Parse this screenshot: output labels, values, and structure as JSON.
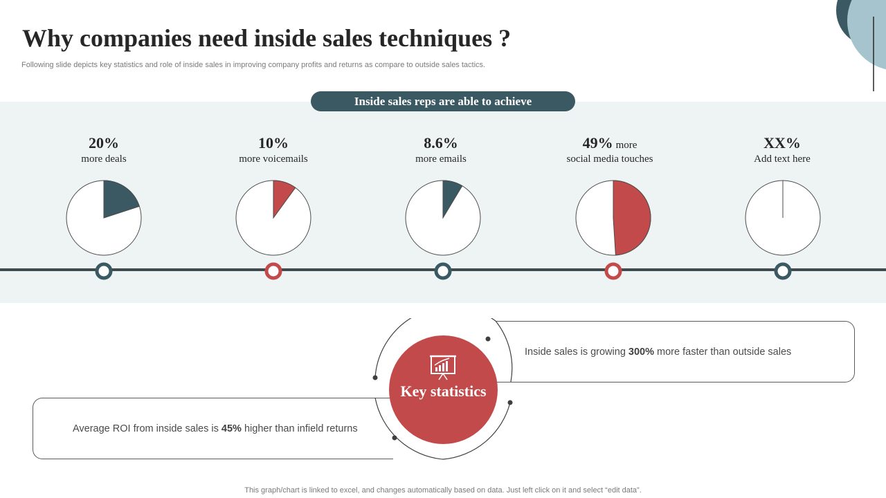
{
  "page": {
    "title": "Why companies need inside sales techniques ?",
    "subtitle": "Following slide depicts key statistics and role of inside sales in improving company profits and returns as compare to outside sales tactics.",
    "banner": "Inside sales reps are able to achieve",
    "footer": "This graph/chart is linked to excel,  and changes automatically based on data. Just left click on it and select “edit data”."
  },
  "colors": {
    "accent_dark": "#3b5963",
    "accent_red": "#c24a4b",
    "band": "#eef4f4",
    "deco_light": "#a6c4ce"
  },
  "stats": [
    {
      "pct": "20%",
      "inline": "",
      "desc": "more deals"
    },
    {
      "pct": "10%",
      "inline": "",
      "desc": "more voicemails"
    },
    {
      "pct": "8.6%",
      "inline": "",
      "desc": "more emails"
    },
    {
      "pct": "49%",
      "inline": "more",
      "desc": "social media touches"
    },
    {
      "pct": "XX%",
      "inline": "",
      "desc": "Add text here"
    }
  ],
  "chart_data": [
    {
      "type": "pie",
      "labels": [
        "more deals",
        ""
      ],
      "values": [
        20,
        80
      ],
      "colors": [
        "#3b5963",
        "#ffffff"
      ]
    },
    {
      "type": "pie",
      "labels": [
        "more voicemails",
        ""
      ],
      "values": [
        10,
        90
      ],
      "colors": [
        "#c24a4b",
        "#ffffff"
      ]
    },
    {
      "type": "pie",
      "labels": [
        "more emails",
        ""
      ],
      "values": [
        8.6,
        91.4
      ],
      "colors": [
        "#3b5963",
        "#ffffff"
      ]
    },
    {
      "type": "pie",
      "labels": [
        "social media touches",
        ""
      ],
      "values": [
        49,
        51
      ],
      "colors": [
        "#c24a4b",
        "#ffffff"
      ]
    },
    {
      "type": "pie",
      "labels": [
        "Add text here",
        ""
      ],
      "values": [
        0,
        100
      ],
      "colors": [
        "#3b5963",
        "#ffffff"
      ]
    }
  ],
  "key_stats": {
    "label": "Key statistics",
    "icon": "presentation-chart-icon",
    "right_card": {
      "before": "Inside sales is growing ",
      "bold": "300%",
      "after": " more faster than outside sales"
    },
    "left_card": {
      "before": "Average ROI from inside sales is ",
      "bold": "45%",
      "after": " higher than infield returns"
    }
  }
}
